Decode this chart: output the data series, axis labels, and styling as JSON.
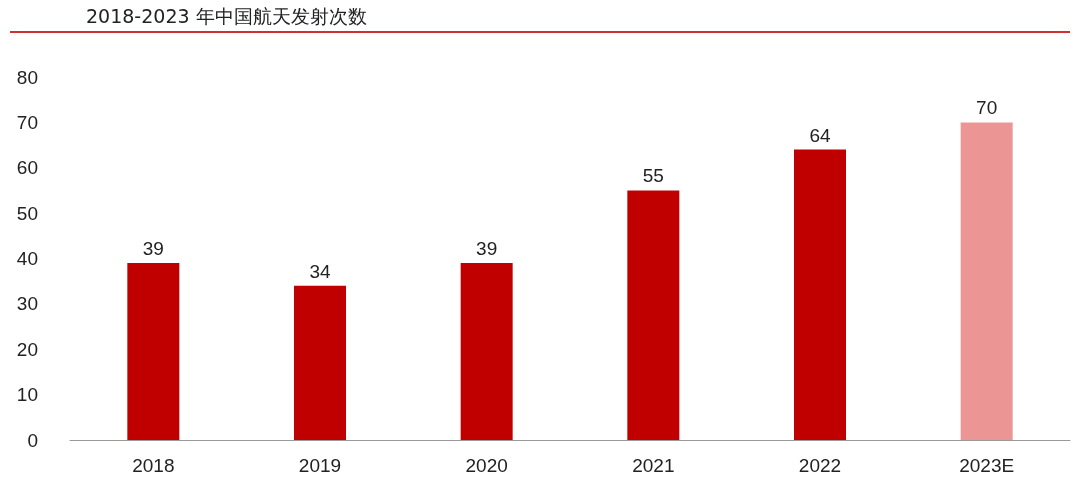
{
  "chart_data": {
    "type": "bar",
    "title": "2018-2023 年中国航天发射次数",
    "categories": [
      "2018",
      "2019",
      "2020",
      "2021",
      "2022",
      "2023E"
    ],
    "values": [
      39,
      34,
      39,
      55,
      64,
      70
    ],
    "colors": [
      "#c00000",
      "#c00000",
      "#c00000",
      "#c00000",
      "#c00000",
      "#eb9595"
    ],
    "ylim": [
      0,
      80
    ],
    "yticks": [
      0,
      10,
      20,
      30,
      40,
      50,
      60,
      70,
      80
    ],
    "grid": false,
    "data_labels": true
  }
}
